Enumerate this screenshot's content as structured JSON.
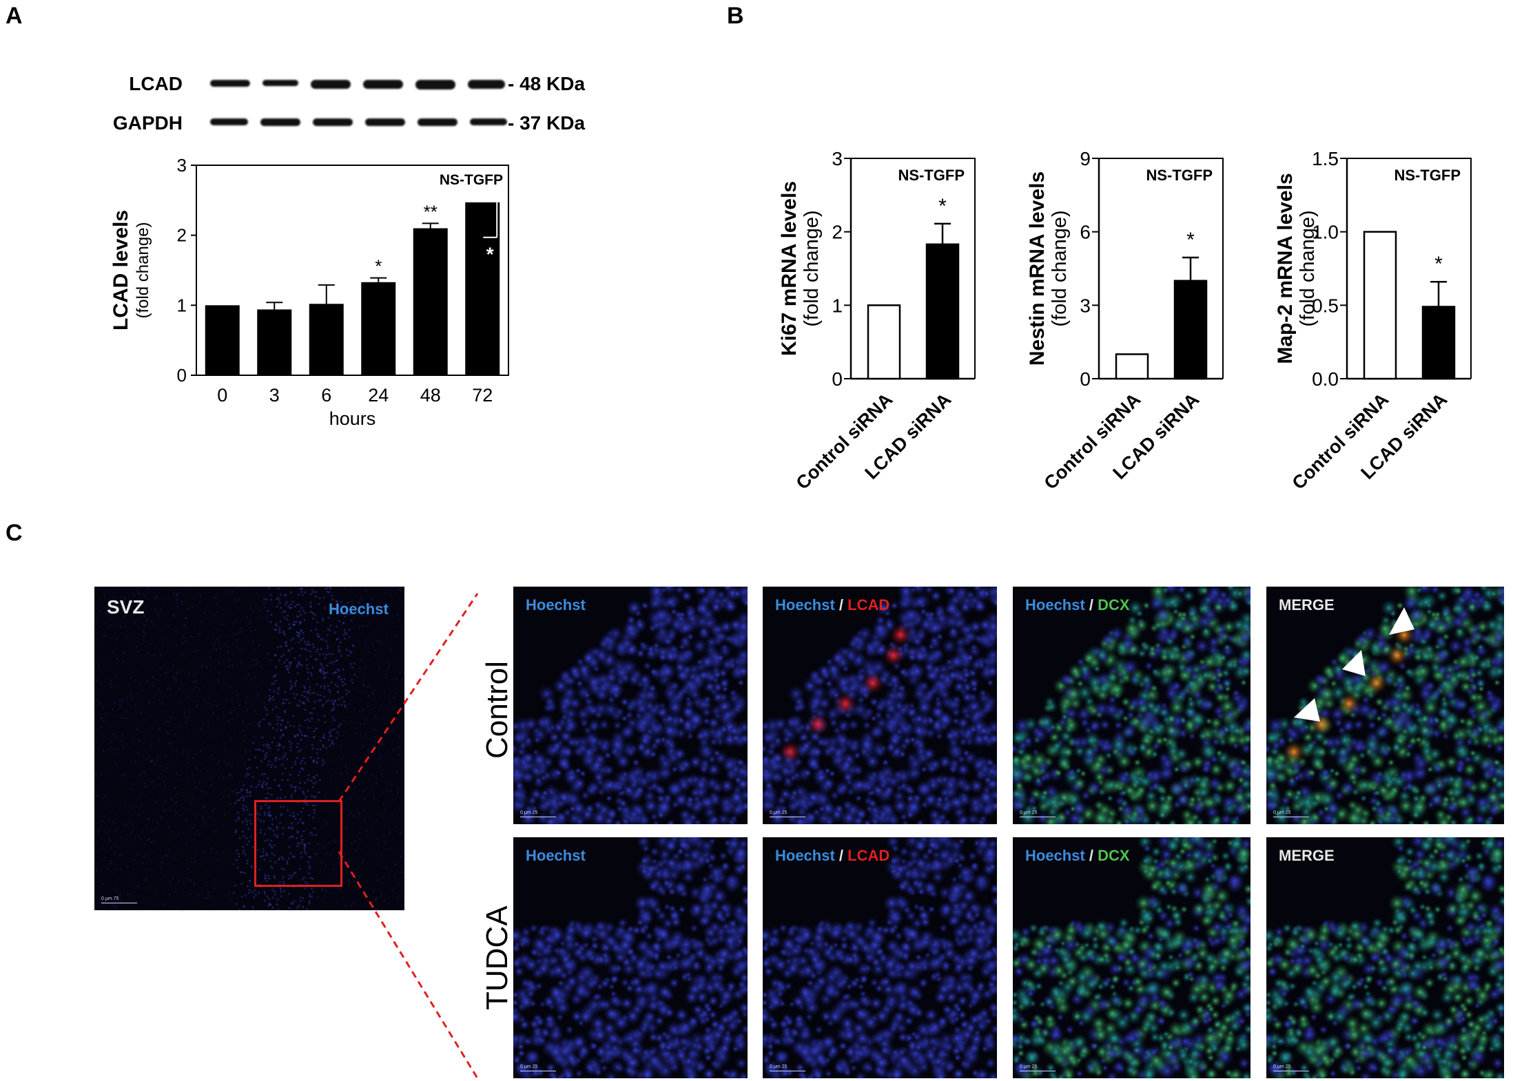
{
  "panels": {
    "a": "A",
    "b": "B",
    "c": "C"
  },
  "blot": {
    "rows": [
      {
        "label": "LCAD",
        "size": "- 48 KDa"
      },
      {
        "label": "GAPDH",
        "size": "- 37 KDa"
      }
    ]
  },
  "chart_data": [
    {
      "type": "bar",
      "title": "NS-TGFP",
      "xlabel": "hours",
      "ylabel": "LCAD levels",
      "ylabel2": "(fold change)",
      "categories": [
        "0",
        "3",
        "6",
        "24",
        "48",
        "72"
      ],
      "values": [
        1.0,
        0.94,
        1.02,
        1.33,
        2.1,
        2.47
      ],
      "errors": [
        0,
        0.1,
        0.27,
        0.06,
        0.07,
        0.5
      ],
      "error_direction": [
        "up",
        "up",
        "up",
        "up",
        "up",
        "down"
      ],
      "annotations": [
        "",
        "",
        "",
        "*",
        "**",
        "*"
      ],
      "ylim": [
        0,
        3
      ],
      "yticks": [
        "0",
        "1",
        "2",
        "3"
      ],
      "bar_color": "#000000"
    },
    {
      "type": "bar",
      "title": "NS-TGFP",
      "ylabel": "Ki67 mRNA levels",
      "ylabel2": "(fold change)",
      "categories": [
        "Control siRNA",
        "LCAD siRNA"
      ],
      "values": [
        1.0,
        1.83
      ],
      "errors": [
        0,
        0.28
      ],
      "annotations": [
        "",
        "*"
      ],
      "ylim": [
        0,
        3
      ],
      "yticks": [
        "0",
        "1",
        "2",
        "3"
      ],
      "bar_fills": [
        "#ffffff",
        "#000000"
      ]
    },
    {
      "type": "bar",
      "title": "NS-TGFP",
      "ylabel": "Nestin mRNA levels",
      "ylabel2": "(fold change)",
      "categories": [
        "Control siRNA",
        "LCAD siRNA"
      ],
      "values": [
        1.0,
        4.0
      ],
      "errors": [
        0,
        0.95
      ],
      "annotations": [
        "",
        "*"
      ],
      "ylim": [
        0,
        9
      ],
      "yticks": [
        "0",
        "3",
        "6",
        "9"
      ],
      "bar_fills": [
        "#ffffff",
        "#000000"
      ]
    },
    {
      "type": "bar",
      "title": "NS-TGFP",
      "ylabel": "Map-2 mRNA levels",
      "ylabel2": "(fold change)",
      "categories": [
        "Control siRNA",
        "LCAD siRNA"
      ],
      "values": [
        1.0,
        0.49
      ],
      "errors": [
        0,
        0.17
      ],
      "annotations": [
        "",
        "*"
      ],
      "ylim": [
        0,
        1.5
      ],
      "yticks": [
        "0.0",
        "0.5",
        "1.0",
        "1.5"
      ],
      "bar_fills": [
        "#ffffff",
        "#000000"
      ]
    }
  ],
  "microscopy": {
    "overview": {
      "region": "SVZ",
      "stain": "Hoechst",
      "scale": "0  μm  75"
    },
    "rows": [
      "Control",
      "TUDCA"
    ],
    "columns": [
      {
        "parts": [
          "Hoechst"
        ]
      },
      {
        "parts": [
          "Hoechst",
          "LCAD"
        ]
      },
      {
        "parts": [
          "Hoechst",
          "DCX"
        ]
      },
      {
        "parts": [
          "MERGE"
        ]
      }
    ],
    "separator": "/",
    "scale": "0  μm  25",
    "colors": {
      "hoechst": "#3a8de0",
      "lcad": "#e02020",
      "dcx": "#4fc24f",
      "merge": "#e8e8e8",
      "inset_box": "#e02020"
    }
  }
}
